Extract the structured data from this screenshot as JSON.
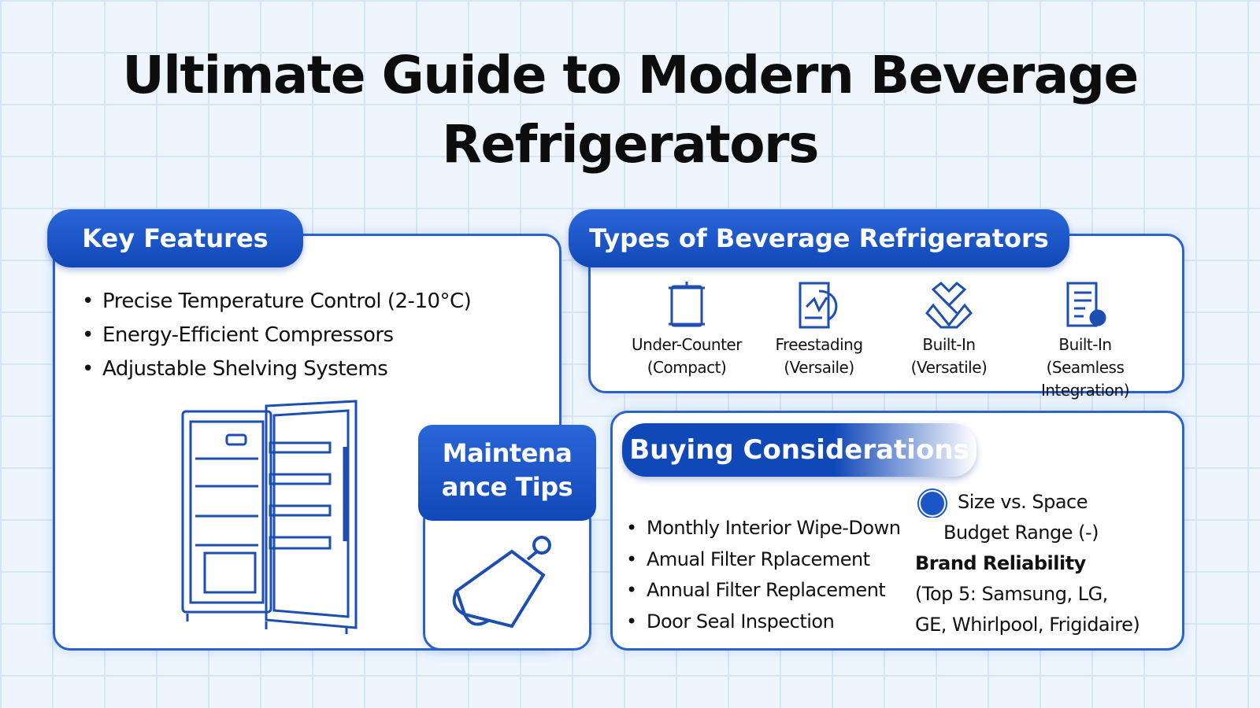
{
  "title": {
    "line1": "Ultimate Guide to Modern Beverage",
    "line2": "Refrigerators"
  },
  "key_features": {
    "header": "Key Features",
    "items": [
      "Precise Temperature Control (2-10°C)",
      "Energy-Efficient Compressors",
      "Adjustable Shelving Systems"
    ],
    "illustration": "refrigerator-icon"
  },
  "types": {
    "header": "Types of Beverage Refrigerators",
    "items": [
      {
        "line1": "Under-Counter",
        "line2": "(Compact)",
        "icon": "cabinet-icon"
      },
      {
        "line1": "Freestading",
        "line2": "(Versaile)",
        "icon": "document-chart-icon"
      },
      {
        "line1": "Built-In",
        "line2": "(Versatile)",
        "icon": "puzzle-icon"
      },
      {
        "line1": "Built-In",
        "line2": "(Seamless Integration)",
        "icon": "document-list-icon"
      }
    ]
  },
  "maintenance": {
    "header_line1": "Maintena",
    "header_line2": "ance Tips",
    "illustration": "cleaning-tag-icon",
    "items": [
      "Monthly Interior Wipe-Down",
      "Amual Filter Rplacement",
      "Annual Filter Replacement",
      "Door Seal Inspection"
    ]
  },
  "buying": {
    "header": "Buying Considerations",
    "size": "Size vs. Space",
    "budget": "Budget Range (-)",
    "brand": "Brand Reliability",
    "brands_line1": "(Top 5: Samsung, LG,",
    "brands_line2": "GE, Whirlpool, Frigidaire)"
  },
  "colors": {
    "accent": "#1a56c8",
    "background": "#eef5fd"
  }
}
